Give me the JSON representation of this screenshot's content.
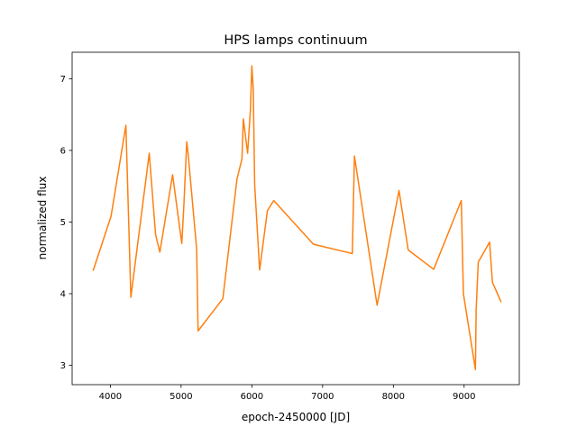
{
  "chart_data": {
    "type": "line",
    "title": "HPS lamps continuum",
    "xlabel": "epoch-2450000 [JD]",
    "ylabel": "normalized flux",
    "xlim": [
      3460,
      9780
    ],
    "ylim": [
      2.73,
      7.37
    ],
    "xticks": [
      4000,
      5000,
      6000,
      7000,
      8000,
      9000
    ],
    "yticks": [
      3,
      4,
      5,
      6,
      7
    ],
    "grid": false,
    "series": [
      {
        "color": "#ff7f0e",
        "x": [
          3760,
          4010,
          4220,
          4290,
          4550,
          4640,
          4700,
          4880,
          5010,
          5040,
          5080,
          5100,
          5220,
          5240,
          5590,
          5790,
          5860,
          5880,
          5940,
          5980,
          6000,
          6020,
          6040,
          6110,
          6220,
          6310,
          6870,
          7420,
          7450,
          7770,
          8080,
          8210,
          8570,
          8960,
          8990,
          9160,
          9170,
          9200,
          9360,
          9400,
          9520
        ],
        "y": [
          4.33,
          5.08,
          6.35,
          3.95,
          5.96,
          4.82,
          4.58,
          5.66,
          4.7,
          5.25,
          6.12,
          5.95,
          4.62,
          3.48,
          3.93,
          5.6,
          5.88,
          6.44,
          5.96,
          6.57,
          7.18,
          6.85,
          5.52,
          4.33,
          5.16,
          5.3,
          4.69,
          4.56,
          5.92,
          3.84,
          5.44,
          4.61,
          4.34,
          5.3,
          4.0,
          2.94,
          3.77,
          4.44,
          4.72,
          4.16,
          3.89
        ]
      }
    ]
  }
}
